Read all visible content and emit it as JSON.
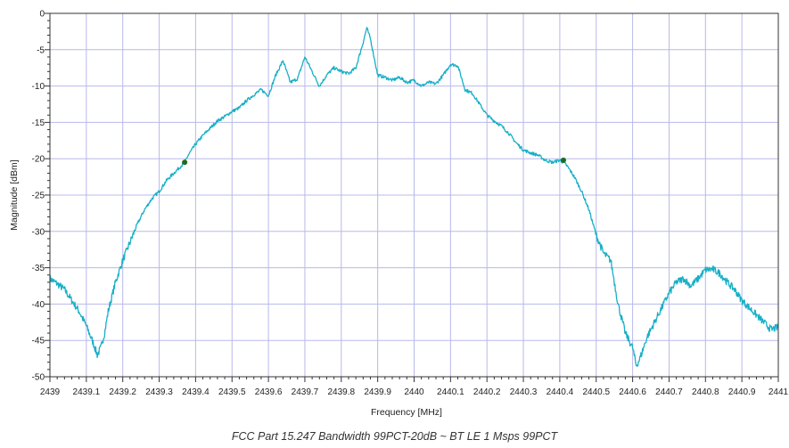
{
  "caption": "FCC Part 15.247 Bandwidth 99PCT-20dB ~ BT LE 1 Msps 99PCT",
  "colors": {
    "trace": "#17AFC6",
    "grid": "#B8B8EC",
    "marker": "#1E6B1E",
    "axis": "#333333"
  },
  "chart_data": {
    "type": "line",
    "title": "",
    "xlabel": "Frequency [MHz]",
    "ylabel": "Magnitude [dBm]",
    "xlim": [
      2439,
      2441
    ],
    "ylim": [
      -50,
      0
    ],
    "grid": true,
    "x_ticks": [
      2439,
      2439.1,
      2439.2,
      2439.3,
      2439.4,
      2439.5,
      2439.6,
      2439.7,
      2439.8,
      2439.9,
      2440,
      2440.1,
      2440.2,
      2440.3,
      2440.4,
      2440.5,
      2440.6,
      2440.7,
      2440.8,
      2440.9,
      2441
    ],
    "x_tick_labels": [
      "2439",
      "2439.1",
      "2439.2",
      "2439.3",
      "2439.4",
      "2439.5",
      "2439.6",
      "2439.7",
      "2439.8",
      "2439.9",
      "2440",
      "2440.1",
      "2440.2",
      "2440.3",
      "2440.4",
      "2440.5",
      "2440.6",
      "2440.7",
      "2440.8",
      "2440.9",
      "2441"
    ],
    "y_ticks": [
      0,
      -5,
      -10,
      -15,
      -20,
      -25,
      -30,
      -35,
      -40,
      -45,
      -50
    ],
    "y_tick_labels": [
      "0",
      "-5",
      "-10",
      "-15",
      "-20",
      "-25",
      "-30",
      "-35",
      "-40",
      "-45",
      "-50"
    ],
    "series": [
      {
        "x": [
          2439,
          2439.02,
          2439.04,
          2439.06,
          2439.08,
          2439.1,
          2439.12,
          2439.13,
          2439.14,
          2439.15,
          2439.16,
          2439.18,
          2439.2,
          2439.22,
          2439.24,
          2439.26,
          2439.28,
          2439.3,
          2439.32,
          2439.34,
          2439.36,
          2439.37,
          2439.38,
          2439.4,
          2439.42,
          2439.44,
          2439.46,
          2439.48,
          2439.5,
          2439.52,
          2439.54,
          2439.56,
          2439.58,
          2439.6,
          2439.62,
          2439.64,
          2439.66,
          2439.68,
          2439.7,
          2439.72,
          2439.74,
          2439.76,
          2439.78,
          2439.8,
          2439.82,
          2439.84,
          2439.86,
          2439.87,
          2439.88,
          2439.9,
          2439.92,
          2439.94,
          2439.96,
          2439.98,
          2440,
          2440.02,
          2440.04,
          2440.06,
          2440.08,
          2440.1,
          2440.12,
          2440.14,
          2440.16,
          2440.18,
          2440.2,
          2440.22,
          2440.24,
          2440.26,
          2440.28,
          2440.3,
          2440.32,
          2440.34,
          2440.36,
          2440.38,
          2440.4,
          2440.41,
          2440.42,
          2440.44,
          2440.46,
          2440.48,
          2440.5,
          2440.52,
          2440.54,
          2440.56,
          2440.58,
          2440.6,
          2440.61,
          2440.62,
          2440.64,
          2440.66,
          2440.68,
          2440.7,
          2440.72,
          2440.74,
          2440.76,
          2440.78,
          2440.8,
          2440.82,
          2440.84,
          2440.86,
          2440.88,
          2440.9,
          2440.92,
          2440.94,
          2440.96,
          2440.98,
          2441
        ],
        "y": [
          -36.5,
          -37.2,
          -38,
          -39.5,
          -41,
          -43,
          -45.5,
          -47,
          -46,
          -44,
          -41,
          -37,
          -34,
          -31.5,
          -29,
          -27,
          -25.5,
          -24.5,
          -23,
          -22,
          -21,
          -20.5,
          -19.5,
          -18,
          -16.8,
          -15.8,
          -14.8,
          -14.2,
          -13.5,
          -13,
          -12,
          -11.2,
          -10.5,
          -11.3,
          -8.5,
          -6.5,
          -9.5,
          -9,
          -6,
          -8,
          -10,
          -8.5,
          -7.5,
          -8,
          -8.3,
          -7.5,
          -4,
          -2,
          -3.5,
          -8.5,
          -8.8,
          -9.2,
          -8.8,
          -9.5,
          -9.2,
          -10,
          -9.5,
          -9.7,
          -8.5,
          -7,
          -7.2,
          -10.5,
          -11,
          -12.5,
          -14,
          -14.8,
          -15.5,
          -16.5,
          -17.8,
          -18.8,
          -19.2,
          -19.5,
          -20.2,
          -20.5,
          -20.2,
          -20.5,
          -21,
          -22.5,
          -24.5,
          -27,
          -30.5,
          -33,
          -34,
          -40,
          -44,
          -46,
          -48.5,
          -47.5,
          -44.5,
          -42.5,
          -40.5,
          -38.5,
          -37,
          -36.5,
          -37.5,
          -36.5,
          -35.3,
          -35.2,
          -35.8,
          -37,
          -38,
          -39.5,
          -40.5,
          -41.5,
          -42.5,
          -43.5,
          -43.2
        ]
      }
    ],
    "markers": [
      {
        "x": 2439.37,
        "y": -20.5
      },
      {
        "x": 2440.41,
        "y": -20.2
      }
    ]
  }
}
